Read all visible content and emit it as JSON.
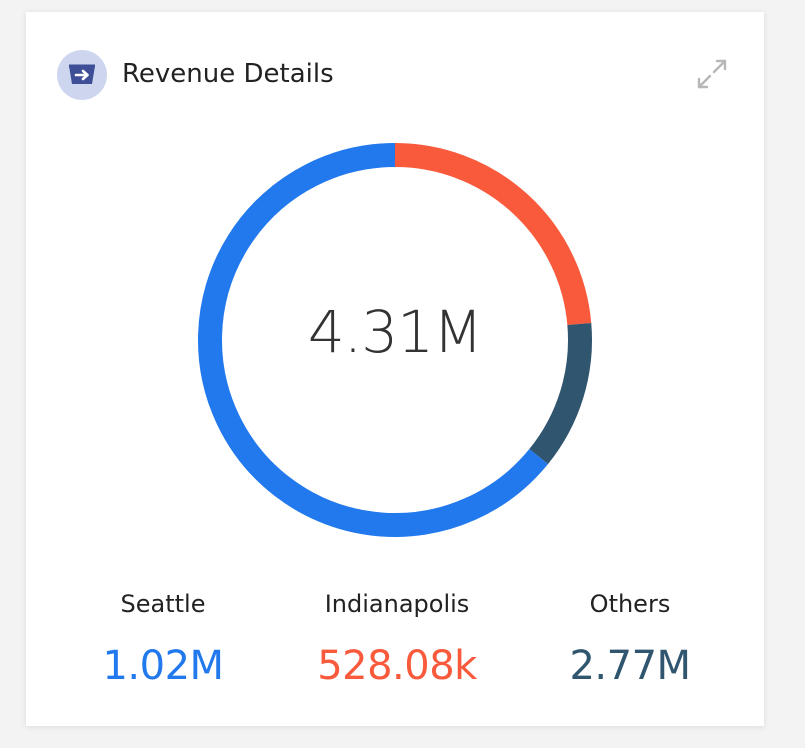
{
  "header": {
    "title": "Revenue Details",
    "icon": "arrow-right-box-icon",
    "expand_icon": "expand-icon"
  },
  "chart_data": {
    "type": "pie",
    "variant": "donut",
    "center_label": "4.31M",
    "segments": [
      {
        "name": "Seattle",
        "label": "1.02M",
        "value": 1020000,
        "color": "#fa5a3c"
      },
      {
        "name": "Indianapolis",
        "label": "528.08k",
        "value": 528080,
        "color": "#30556f"
      },
      {
        "name": "Others",
        "label": "2.77M",
        "value": 2770000,
        "color": "#2179ed"
      }
    ]
  },
  "legend": [
    {
      "name": "Seattle",
      "value": "1.02M",
      "color": "#2179ed"
    },
    {
      "name": "Indianapolis",
      "value": "528.08k",
      "color": "#fa5a3c"
    },
    {
      "name": "Others",
      "value": "2.77M",
      "color": "#30556f"
    }
  ]
}
